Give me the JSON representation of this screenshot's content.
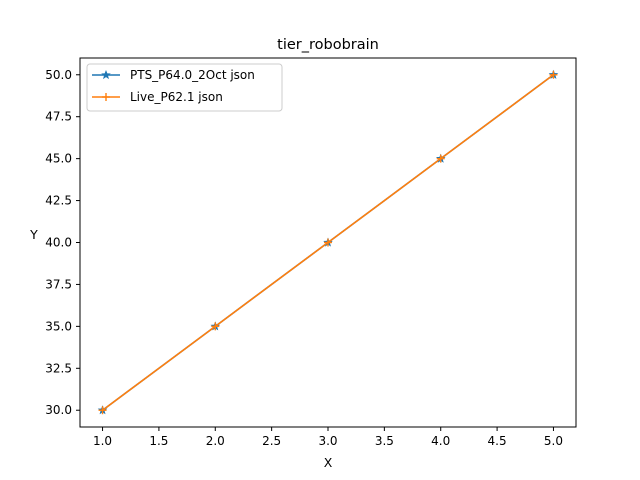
{
  "chart_data": {
    "type": "line",
    "title": "tier_robobrain",
    "xlabel": "X",
    "ylabel": "Y",
    "xlim": [
      0.8,
      5.2
    ],
    "ylim": [
      29.0,
      51.0
    ],
    "x_ticks": [
      "1.0",
      "1.5",
      "2.0",
      "2.5",
      "3.0",
      "3.5",
      "4.0",
      "4.5",
      "5.0"
    ],
    "y_ticks": [
      "30.0",
      "32.5",
      "35.0",
      "37.5",
      "40.0",
      "42.5",
      "45.0",
      "47.5",
      "50.0"
    ],
    "grid": false,
    "legend_position": "top-left",
    "x": [
      1,
      2,
      3,
      4,
      5
    ],
    "series": [
      {
        "name": "PTS_P64.0_2Oct json",
        "values": [
          30,
          35,
          40,
          45,
          50
        ],
        "color": "#1f77b4",
        "marker": "star"
      },
      {
        "name": "Live_P62.1 json",
        "values": [
          30,
          35,
          40,
          45,
          50
        ],
        "color": "#ff7f0e",
        "marker": "plus"
      }
    ]
  }
}
